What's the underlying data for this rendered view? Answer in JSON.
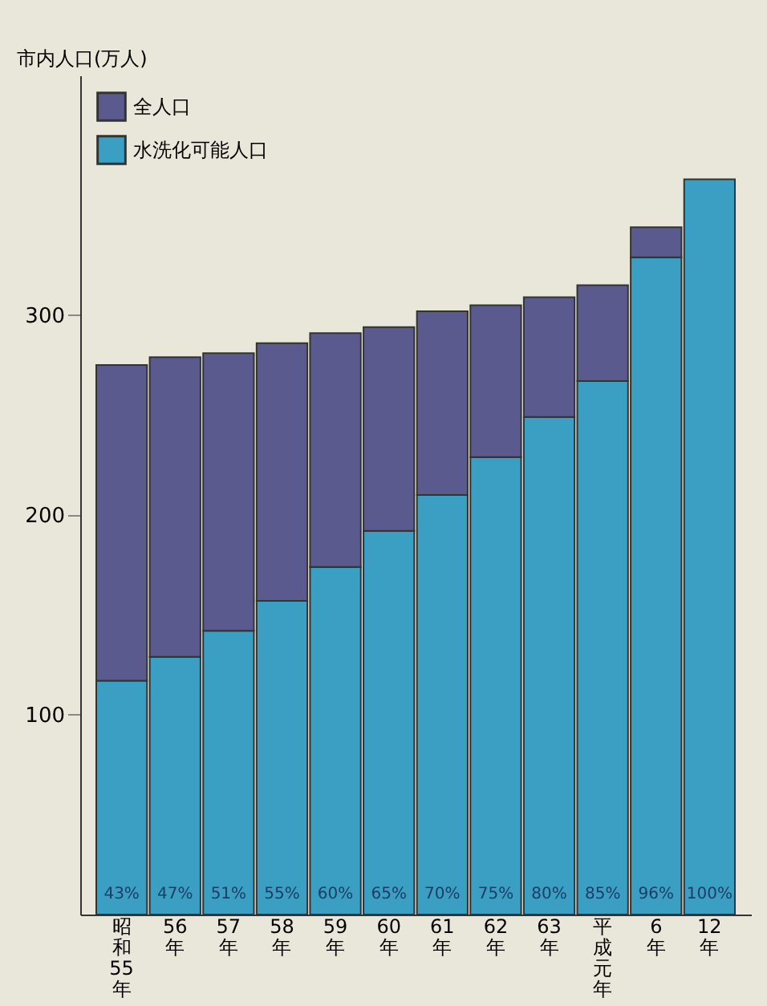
{
  "chart_data": {
    "type": "bar",
    "stacked": true,
    "ylabel": "市内人口(万人)",
    "categories": [
      "昭和55年",
      "56年",
      "57年",
      "58年",
      "59年",
      "60年",
      "61年",
      "62年",
      "63年",
      "平成元年",
      "6年",
      "12年"
    ],
    "series": [
      {
        "name": "水洗化可能人口",
        "color": "#3a9fc2",
        "values": [
          117,
          129,
          142,
          157,
          174,
          192,
          210,
          229,
          249,
          267,
          329,
          368
        ]
      },
      {
        "name": "全人口",
        "color": "#5b5a8e",
        "values": [
          158,
          150,
          139,
          129,
          117,
          102,
          92,
          76,
          60,
          48,
          15,
          null
        ]
      }
    ],
    "annotations": [
      "43%",
      "47%",
      "51%",
      "55%",
      "60%",
      "65%",
      "70%",
      "75%",
      "80%",
      "85%",
      "96%",
      "100%"
    ],
    "ylim": [
      0,
      420
    ],
    "yticks": [
      100,
      200,
      300
    ],
    "grid": false,
    "legend": "top left"
  }
}
